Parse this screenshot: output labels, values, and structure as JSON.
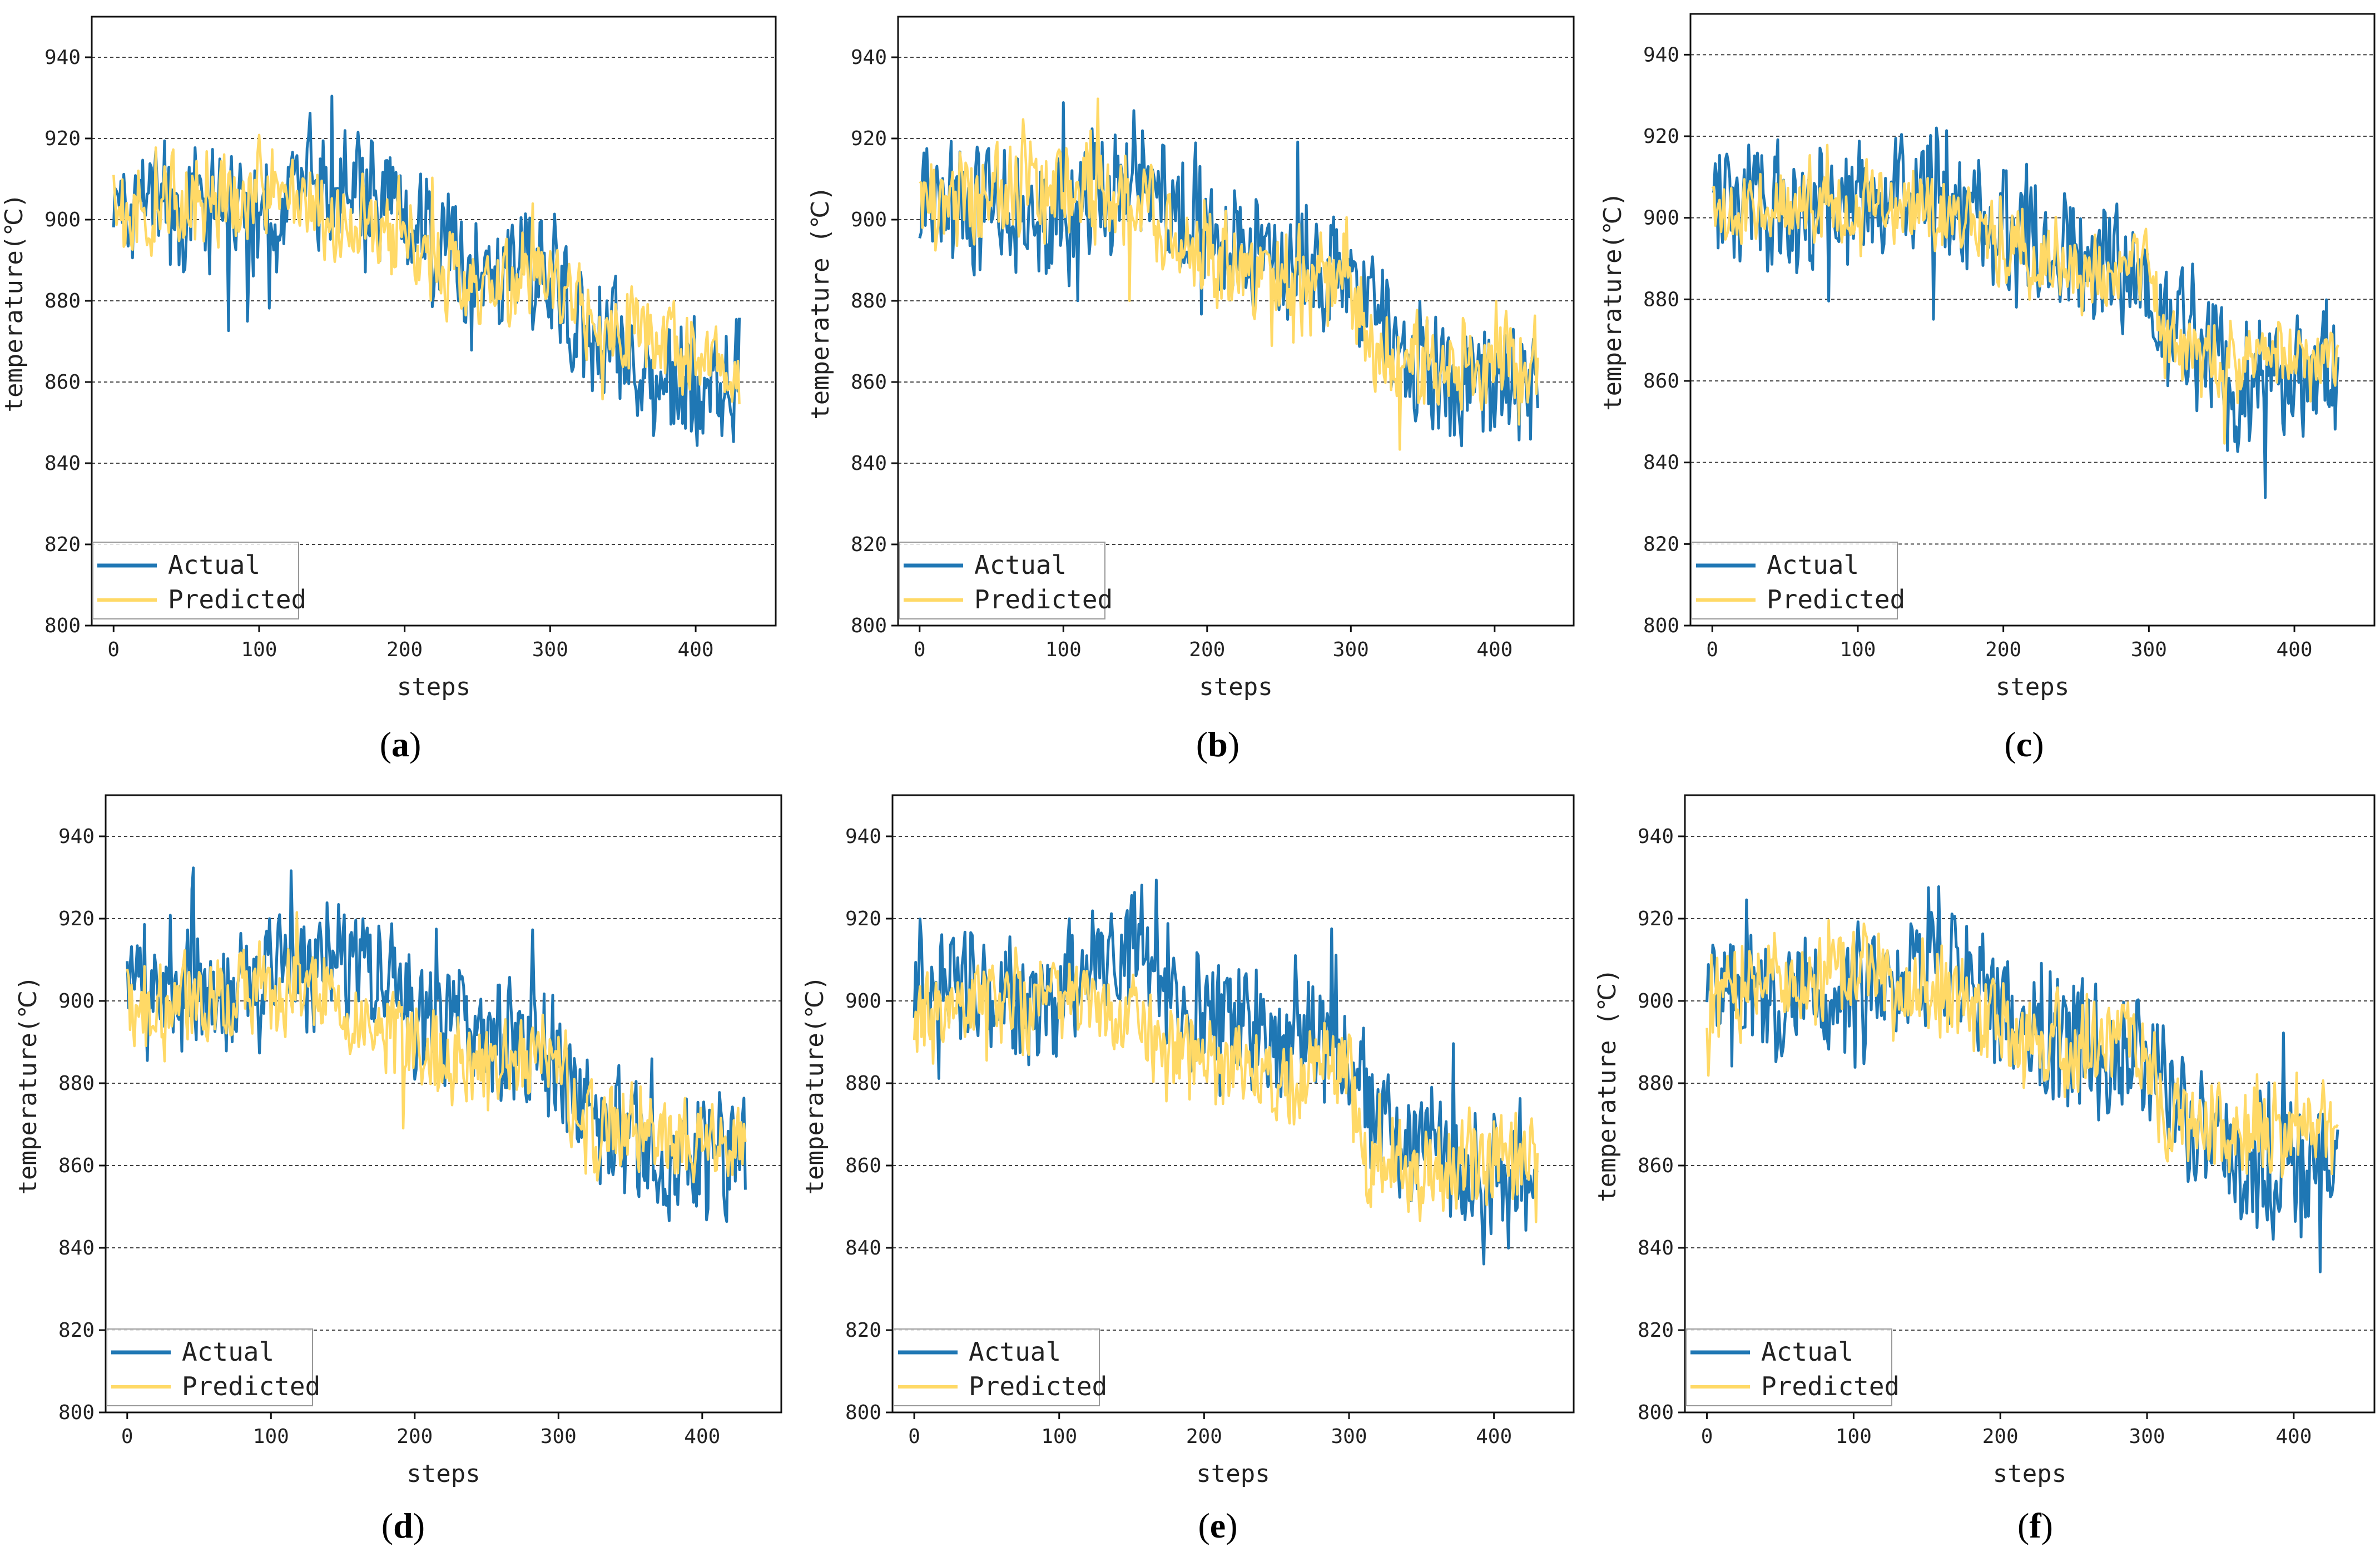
{
  "figure": {
    "panels": [
      "a",
      "b",
      "c",
      "d",
      "e",
      "f"
    ]
  },
  "chart_data": [
    {
      "panel": "a",
      "caption": "a",
      "type": "line",
      "xlabel": "steps",
      "ylabel": "temperature(℃)",
      "xlim": [
        -15,
        455
      ],
      "ylim": [
        800,
        950
      ],
      "xticks": [
        0,
        100,
        200,
        300,
        400
      ],
      "yticks": [
        800,
        820,
        840,
        860,
        880,
        900,
        920,
        940
      ],
      "grid": "horizontal dashed",
      "legend": "bottom-left",
      "seed": 11,
      "series": [
        {
          "name": "Actual",
          "color": "#1f77b4",
          "segments": [
            [
              0,
              905
            ],
            [
              40,
              903
            ],
            [
              90,
              900
            ],
            [
              150,
              910
            ],
            [
              200,
              898
            ],
            [
              250,
              890
            ],
            [
              300,
              886
            ],
            [
              305,
              880
            ],
            [
              340,
              868
            ],
            [
              380,
              858
            ],
            [
              430,
              862
            ]
          ],
          "noise": 13
        },
        {
          "name": "Predicted",
          "color": "#ffd966",
          "segments": [
            [
              0,
              900
            ],
            [
              50,
              905
            ],
            [
              100,
              906
            ],
            [
              150,
              903
            ],
            [
              200,
              894
            ],
            [
              250,
              884
            ],
            [
              300,
              888
            ],
            [
              310,
              880
            ],
            [
              360,
              872
            ],
            [
              400,
              866
            ],
            [
              430,
              862
            ]
          ],
          "noise": 9
        }
      ]
    },
    {
      "panel": "b",
      "caption": "b",
      "type": "line",
      "xlabel": "steps",
      "ylabel": "temperature (℃)",
      "xlim": [
        -15,
        455
      ],
      "ylim": [
        800,
        950
      ],
      "xticks": [
        0,
        100,
        200,
        300,
        400
      ],
      "yticks": [
        800,
        820,
        840,
        860,
        880,
        900,
        920,
        940
      ],
      "grid": "horizontal dashed",
      "legend": "bottom-left",
      "seed": 23,
      "series": [
        {
          "name": "Actual",
          "color": "#1f77b4",
          "segments": [
            [
              0,
              905
            ],
            [
              40,
              903
            ],
            [
              90,
              900
            ],
            [
              150,
              910
            ],
            [
              200,
              898
            ],
            [
              250,
              890
            ],
            [
              300,
              886
            ],
            [
              305,
              880
            ],
            [
              340,
              868
            ],
            [
              380,
              858
            ],
            [
              430,
              862
            ]
          ],
          "noise": 13
        },
        {
          "name": "Predicted",
          "color": "#ffd966",
          "segments": [
            [
              0,
              902
            ],
            [
              60,
              910
            ],
            [
              100,
              908
            ],
            [
              150,
              905
            ],
            [
              200,
              892
            ],
            [
              250,
              882
            ],
            [
              300,
              886
            ],
            [
              310,
              866
            ],
            [
              360,
              866
            ],
            [
              400,
              864
            ],
            [
              430,
              862
            ]
          ],
          "noise": 11
        }
      ]
    },
    {
      "panel": "c",
      "caption": "c",
      "type": "line",
      "xlabel": "steps",
      "ylabel": "temperature(℃)",
      "xlim": [
        -15,
        455
      ],
      "ylim": [
        800,
        950
      ],
      "xticks": [
        0,
        100,
        200,
        300,
        400
      ],
      "yticks": [
        800,
        820,
        840,
        860,
        880,
        900,
        920,
        940
      ],
      "grid": "horizontal dashed",
      "legend": "bottom-left",
      "seed": 37,
      "series": [
        {
          "name": "Actual",
          "color": "#1f77b4",
          "segments": [
            [
              0,
              905
            ],
            [
              40,
              903
            ],
            [
              90,
              900
            ],
            [
              150,
              910
            ],
            [
              200,
              898
            ],
            [
              250,
              890
            ],
            [
              300,
              886
            ],
            [
              305,
              880
            ],
            [
              340,
              868
            ],
            [
              380,
              858
            ],
            [
              430,
              862
            ]
          ],
          "noise": 13
        },
        {
          "name": "Predicted",
          "color": "#ffd966",
          "segments": [
            [
              0,
              900
            ],
            [
              50,
              904
            ],
            [
              100,
              904
            ],
            [
              150,
              902
            ],
            [
              200,
              893
            ],
            [
              250,
              884
            ],
            [
              300,
              888
            ],
            [
              310,
              868
            ],
            [
              360,
              864
            ],
            [
              400,
              866
            ],
            [
              430,
              864
            ]
          ],
          "noise": 8
        }
      ]
    },
    {
      "panel": "d",
      "caption": "d",
      "type": "line",
      "xlabel": "steps",
      "ylabel": "temperature(℃)",
      "xlim": [
        -15,
        455
      ],
      "ylim": [
        800,
        950
      ],
      "xticks": [
        0,
        100,
        200,
        300,
        400
      ],
      "yticks": [
        800,
        820,
        840,
        860,
        880,
        900,
        920,
        940
      ],
      "grid": "horizontal dashed",
      "legend": "bottom-left",
      "seed": 41,
      "series": [
        {
          "name": "Actual",
          "color": "#1f77b4",
          "segments": [
            [
              0,
              905
            ],
            [
              40,
              903
            ],
            [
              90,
              900
            ],
            [
              150,
              910
            ],
            [
              200,
              898
            ],
            [
              250,
              890
            ],
            [
              300,
              886
            ],
            [
              305,
              880
            ],
            [
              340,
              868
            ],
            [
              380,
              858
            ],
            [
              430,
              862
            ]
          ],
          "noise": 13
        },
        {
          "name": "Predicted",
          "color": "#ffd966",
          "segments": [
            [
              0,
              898
            ],
            [
              50,
              900
            ],
            [
              100,
              904
            ],
            [
              150,
              900
            ],
            [
              200,
              888
            ],
            [
              250,
              882
            ],
            [
              300,
              890
            ],
            [
              310,
              872
            ],
            [
              360,
              868
            ],
            [
              400,
              866
            ],
            [
              430,
              864
            ]
          ],
          "noise": 9
        }
      ]
    },
    {
      "panel": "e",
      "caption": "e",
      "type": "line",
      "xlabel": "steps",
      "ylabel": "temperature(℃)",
      "xlim": [
        -15,
        455
      ],
      "ylim": [
        800,
        950
      ],
      "xticks": [
        0,
        100,
        200,
        300,
        400
      ],
      "yticks": [
        800,
        820,
        840,
        860,
        880,
        900,
        920,
        940
      ],
      "grid": "horizontal dashed",
      "legend": "bottom-left",
      "seed": 53,
      "series": [
        {
          "name": "Actual",
          "color": "#1f77b4",
          "segments": [
            [
              0,
              905
            ],
            [
              40,
              903
            ],
            [
              90,
              900
            ],
            [
              150,
              910
            ],
            [
              200,
              898
            ],
            [
              250,
              890
            ],
            [
              300,
              886
            ],
            [
              305,
              880
            ],
            [
              340,
              868
            ],
            [
              380,
              858
            ],
            [
              430,
              862
            ]
          ],
          "noise": 13
        },
        {
          "name": "Predicted",
          "color": "#ffd966",
          "segments": [
            [
              0,
              896
            ],
            [
              50,
              900
            ],
            [
              100,
              900
            ],
            [
              150,
              896
            ],
            [
              200,
              886
            ],
            [
              250,
              880
            ],
            [
              300,
              886
            ],
            [
              310,
              860
            ],
            [
              360,
              860
            ],
            [
              400,
              862
            ],
            [
              430,
              862
            ]
          ],
          "noise": 9
        }
      ]
    },
    {
      "panel": "f",
      "caption": "f",
      "type": "line",
      "xlabel": "steps",
      "ylabel": "temperature (℃)",
      "xlim": [
        -15,
        455
      ],
      "ylim": [
        800,
        950
      ],
      "xticks": [
        0,
        100,
        200,
        300,
        400
      ],
      "yticks": [
        800,
        820,
        840,
        860,
        880,
        900,
        920,
        940
      ],
      "grid": "horizontal dashed",
      "legend": "bottom-left",
      "seed": 67,
      "series": [
        {
          "name": "Actual",
          "color": "#1f77b4",
          "segments": [
            [
              0,
              905
            ],
            [
              40,
              903
            ],
            [
              90,
              900
            ],
            [
              150,
              910
            ],
            [
              200,
              898
            ],
            [
              250,
              890
            ],
            [
              300,
              886
            ],
            [
              305,
              880
            ],
            [
              340,
              868
            ],
            [
              380,
              858
            ],
            [
              430,
              862
            ]
          ],
          "noise": 13
        },
        {
          "name": "Predicted",
          "color": "#ffd966",
          "segments": [
            [
              0,
              900
            ],
            [
              50,
              906
            ],
            [
              100,
              906
            ],
            [
              150,
              904
            ],
            [
              200,
              894
            ],
            [
              250,
              888
            ],
            [
              300,
              890
            ],
            [
              310,
              874
            ],
            [
              360,
              868
            ],
            [
              400,
              866
            ],
            [
              430,
              866
            ]
          ],
          "noise": 10
        }
      ]
    }
  ]
}
